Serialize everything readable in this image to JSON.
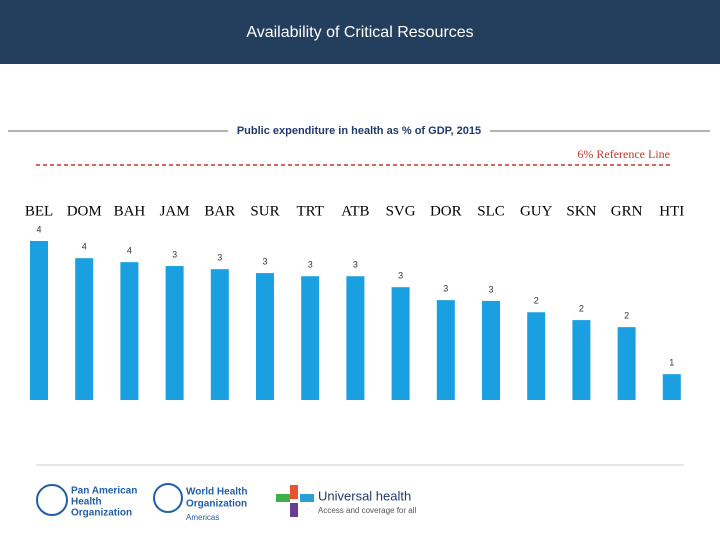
{
  "header": {
    "title": "Availability of Critical Resources"
  },
  "chart_data": {
    "type": "bar",
    "title": "Public expenditure in health as % of GDP, 2015",
    "categories": [
      "BEL",
      "DOM",
      "BAH",
      "JAM",
      "BAR",
      "SUR",
      "TRT",
      "ATB",
      "SVG",
      "DOR",
      "SLC",
      "GUY",
      "SKN",
      "GRN",
      "HTI"
    ],
    "values": [
      4.06,
      3.62,
      3.52,
      3.42,
      3.34,
      3.24,
      3.16,
      3.16,
      2.88,
      2.55,
      2.53,
      2.24,
      2.04,
      1.86,
      0.66
    ],
    "value_labels": [
      "4",
      "4",
      "4",
      "3",
      "3",
      "3",
      "3",
      "3",
      "3",
      "3",
      "3",
      "2",
      "2",
      "2",
      "1"
    ],
    "color": "#1a9fe0",
    "ylim": [
      0,
      6
    ],
    "reference_line": {
      "value": 6,
      "label": "6% Reference Line"
    }
  },
  "logos": {
    "paho": [
      "Pan American",
      "Health",
      "Organization"
    ],
    "who": [
      "World Health",
      "Organization",
      "Americas"
    ],
    "uh": [
      "Universal health",
      "Access and coverage for all"
    ]
  }
}
